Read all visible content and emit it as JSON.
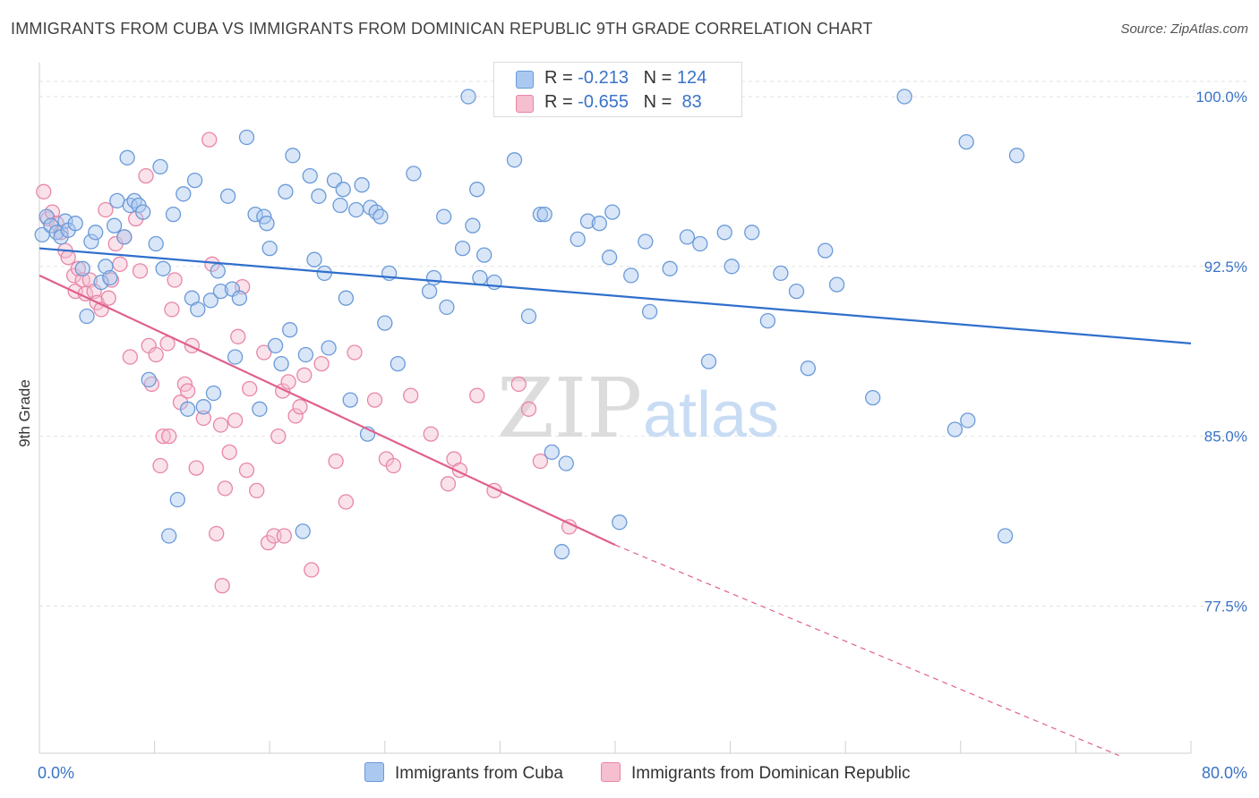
{
  "header": {
    "title": "IMMIGRANTS FROM CUBA VS IMMIGRANTS FROM DOMINICAN REPUBLIC 9TH GRADE CORRELATION CHART",
    "source": "Source: ZipAtlas.com"
  },
  "legend": {
    "rows": [
      {
        "r_label": "R =",
        "r_value": "-0.213",
        "n_label": "N =",
        "n_value": "124"
      },
      {
        "r_label": "R =",
        "r_value": "-0.655",
        "n_label": "N =",
        "n_value": "83"
      }
    ],
    "bottom": [
      {
        "label": "Immigrants from Cuba"
      },
      {
        "label": "Immigrants from Dominican Republic"
      }
    ]
  },
  "watermark": {
    "zip": "ZIP",
    "atlas": "atlas"
  },
  "colors": {
    "cuba_fill": "#aac8f0",
    "cuba_stroke": "#6a9ad8",
    "cuba_line": "#2f6fcc",
    "dr_fill": "#f5bfd0",
    "dr_stroke": "#e886a6",
    "dr_line": "#e0608e",
    "axis_text": "#3a73c8",
    "grid": "#e2e2e2"
  },
  "chart_data": {
    "type": "scatter",
    "title": "IMMIGRANTS FROM CUBA VS IMMIGRANTS FROM DOMINICAN REPUBLIC 9TH GRADE CORRELATION CHART",
    "xlabel": "",
    "ylabel": "9th Grade",
    "xlim": [
      0,
      80
    ],
    "ylim": [
      71,
      101.5
    ],
    "x_tick_labels": [
      {
        "value": 0,
        "label": "0.0%"
      },
      {
        "value": 80,
        "label": "80.0%"
      }
    ],
    "y_tick_labels": [
      {
        "value": 100,
        "label": "100.0%"
      },
      {
        "value": 92.5,
        "label": "92.5%"
      },
      {
        "value": 85,
        "label": "85.0%"
      },
      {
        "value": 77.5,
        "label": "77.5%"
      }
    ],
    "x_minor_ticks": [
      8,
      16,
      24,
      32,
      40,
      48,
      56,
      64,
      72,
      80
    ],
    "series": [
      {
        "name": "Immigrants from Cuba",
        "color": "#6a9ad8",
        "trend": {
          "x1": 0,
          "y1": 93.3,
          "x2": 80,
          "y2": 89.1
        },
        "points": [
          [
            0.2,
            93.9
          ],
          [
            0.5,
            94.7
          ],
          [
            0.8,
            94.3
          ],
          [
            1.2,
            94.0
          ],
          [
            1.5,
            93.8
          ],
          [
            1.8,
            94.5
          ],
          [
            2.0,
            94.1
          ],
          [
            2.5,
            94.4
          ],
          [
            3.0,
            92.4
          ],
          [
            3.3,
            90.3
          ],
          [
            3.6,
            93.6
          ],
          [
            3.9,
            94.0
          ],
          [
            4.3,
            91.8
          ],
          [
            4.6,
            92.5
          ],
          [
            4.9,
            92.0
          ],
          [
            5.2,
            94.3
          ],
          [
            5.4,
            95.4
          ],
          [
            5.9,
            93.8
          ],
          [
            6.1,
            97.3
          ],
          [
            6.3,
            95.2
          ],
          [
            6.6,
            95.4
          ],
          [
            6.9,
            95.2
          ],
          [
            7.2,
            94.9
          ],
          [
            7.6,
            87.5
          ],
          [
            8.1,
            93.5
          ],
          [
            8.4,
            96.9
          ],
          [
            8.6,
            92.4
          ],
          [
            9.0,
            80.6
          ],
          [
            9.3,
            94.8
          ],
          [
            9.6,
            82.2
          ],
          [
            10.0,
            95.7
          ],
          [
            10.3,
            86.2
          ],
          [
            10.6,
            91.1
          ],
          [
            10.8,
            96.3
          ],
          [
            11.0,
            90.6
          ],
          [
            11.4,
            86.3
          ],
          [
            11.9,
            91.0
          ],
          [
            12.1,
            86.9
          ],
          [
            12.4,
            92.3
          ],
          [
            12.6,
            91.4
          ],
          [
            13.1,
            95.6
          ],
          [
            13.4,
            91.5
          ],
          [
            13.6,
            88.5
          ],
          [
            13.9,
            91.1
          ],
          [
            14.4,
            98.2
          ],
          [
            15.0,
            94.8
          ],
          [
            15.3,
            86.2
          ],
          [
            15.6,
            94.7
          ],
          [
            15.8,
            94.4
          ],
          [
            16.0,
            93.3
          ],
          [
            16.4,
            89.0
          ],
          [
            16.8,
            88.2
          ],
          [
            17.1,
            95.8
          ],
          [
            17.4,
            89.7
          ],
          [
            17.6,
            97.4
          ],
          [
            18.3,
            80.8
          ],
          [
            18.5,
            88.6
          ],
          [
            18.8,
            96.5
          ],
          [
            19.1,
            92.8
          ],
          [
            19.4,
            95.6
          ],
          [
            19.8,
            92.2
          ],
          [
            20.1,
            88.9
          ],
          [
            20.5,
            96.3
          ],
          [
            20.9,
            95.2
          ],
          [
            21.1,
            95.9
          ],
          [
            21.3,
            91.1
          ],
          [
            21.6,
            86.6
          ],
          [
            22.0,
            95.0
          ],
          [
            22.4,
            96.1
          ],
          [
            22.8,
            85.1
          ],
          [
            23.0,
            95.1
          ],
          [
            23.4,
            94.9
          ],
          [
            23.7,
            94.7
          ],
          [
            24.0,
            90.0
          ],
          [
            24.3,
            92.2
          ],
          [
            24.9,
            88.2
          ],
          [
            26.0,
            96.6
          ],
          [
            27.1,
            91.4
          ],
          [
            27.4,
            92.0
          ],
          [
            28.1,
            94.7
          ],
          [
            28.3,
            90.7
          ],
          [
            29.4,
            93.3
          ],
          [
            29.8,
            100.0
          ],
          [
            30.1,
            94.3
          ],
          [
            30.4,
            95.9
          ],
          [
            30.6,
            92.0
          ],
          [
            30.9,
            93.0
          ],
          [
            31.6,
            91.8
          ],
          [
            33.0,
            97.2
          ],
          [
            34.0,
            90.3
          ],
          [
            34.8,
            94.8
          ],
          [
            35.1,
            94.8
          ],
          [
            35.6,
            84.3
          ],
          [
            36.3,
            79.9
          ],
          [
            36.6,
            83.8
          ],
          [
            37.4,
            93.7
          ],
          [
            38.1,
            94.5
          ],
          [
            38.9,
            94.4
          ],
          [
            39.6,
            92.9
          ],
          [
            39.8,
            94.9
          ],
          [
            40.3,
            81.2
          ],
          [
            41.1,
            92.1
          ],
          [
            42.1,
            93.6
          ],
          [
            42.4,
            90.5
          ],
          [
            43.8,
            92.4
          ],
          [
            45.0,
            93.8
          ],
          [
            45.9,
            93.5
          ],
          [
            46.5,
            88.3
          ],
          [
            47.6,
            94.0
          ],
          [
            48.1,
            92.5
          ],
          [
            49.5,
            94.0
          ],
          [
            50.6,
            90.1
          ],
          [
            51.5,
            92.2
          ],
          [
            52.6,
            91.4
          ],
          [
            53.4,
            88.0
          ],
          [
            54.6,
            93.2
          ],
          [
            55.4,
            91.7
          ],
          [
            57.9,
            86.7
          ],
          [
            60.1,
            100.0
          ],
          [
            63.6,
            85.3
          ],
          [
            64.5,
            85.7
          ],
          [
            67.1,
            80.6
          ],
          [
            64.4,
            98.0
          ],
          [
            67.9,
            97.4
          ]
        ]
      },
      {
        "name": "Immigrants from Dominican Republic",
        "color": "#e886a6",
        "trend": {
          "x1": 0,
          "y1": 92.1,
          "x2": 40,
          "y2": 80.2
        },
        "trend_extension": {
          "x1": 40,
          "y1": 80.2,
          "x2": 75,
          "y2": 70.9
        },
        "points": [
          [
            0.3,
            95.8
          ],
          [
            0.6,
            94.6
          ],
          [
            0.9,
            94.9
          ],
          [
            1.2,
            94.4
          ],
          [
            1.5,
            94.0
          ],
          [
            1.8,
            93.2
          ],
          [
            2.0,
            92.9
          ],
          [
            2.4,
            92.1
          ],
          [
            2.5,
            91.4
          ],
          [
            2.7,
            92.4
          ],
          [
            3.0,
            91.9
          ],
          [
            3.2,
            91.3
          ],
          [
            3.5,
            91.9
          ],
          [
            3.8,
            91.4
          ],
          [
            4.0,
            90.9
          ],
          [
            4.3,
            90.6
          ],
          [
            4.6,
            95.0
          ],
          [
            4.8,
            91.1
          ],
          [
            5.0,
            91.9
          ],
          [
            5.3,
            93.5
          ],
          [
            5.6,
            92.6
          ],
          [
            5.9,
            93.8
          ],
          [
            6.3,
            88.5
          ],
          [
            6.7,
            94.6
          ],
          [
            7.0,
            92.3
          ],
          [
            7.4,
            96.5
          ],
          [
            7.6,
            89.0
          ],
          [
            7.8,
            87.3
          ],
          [
            8.1,
            88.6
          ],
          [
            8.4,
            83.7
          ],
          [
            8.6,
            85.0
          ],
          [
            8.9,
            89.1
          ],
          [
            9.2,
            90.6
          ],
          [
            9.4,
            91.9
          ],
          [
            9.8,
            86.5
          ],
          [
            10.1,
            87.3
          ],
          [
            10.3,
            87.0
          ],
          [
            10.6,
            89.0
          ],
          [
            10.9,
            83.6
          ],
          [
            11.4,
            85.8
          ],
          [
            11.8,
            98.1
          ],
          [
            12.0,
            92.6
          ],
          [
            12.3,
            80.7
          ],
          [
            12.6,
            85.5
          ],
          [
            12.9,
            82.7
          ],
          [
            13.2,
            84.3
          ],
          [
            13.6,
            85.7
          ],
          [
            13.8,
            89.4
          ],
          [
            14.1,
            91.6
          ],
          [
            14.4,
            83.5
          ],
          [
            14.6,
            87.1
          ],
          [
            15.1,
            82.6
          ],
          [
            15.6,
            88.7
          ],
          [
            15.9,
            80.3
          ],
          [
            16.3,
            80.6
          ],
          [
            16.6,
            85.0
          ],
          [
            16.9,
            87.0
          ],
          [
            17.3,
            87.4
          ],
          [
            17.8,
            85.9
          ],
          [
            18.1,
            86.3
          ],
          [
            18.4,
            87.7
          ],
          [
            18.9,
            79.1
          ],
          [
            19.6,
            88.2
          ],
          [
            20.6,
            83.9
          ],
          [
            21.3,
            82.1
          ],
          [
            21.9,
            88.7
          ],
          [
            23.3,
            86.6
          ],
          [
            24.1,
            84.0
          ],
          [
            24.6,
            83.7
          ],
          [
            25.8,
            86.8
          ],
          [
            27.2,
            85.1
          ],
          [
            28.4,
            82.9
          ],
          [
            28.8,
            84.0
          ],
          [
            29.2,
            83.5
          ],
          [
            30.4,
            86.8
          ],
          [
            31.6,
            82.6
          ],
          [
            33.3,
            87.3
          ],
          [
            34.0,
            86.2
          ],
          [
            34.8,
            83.9
          ],
          [
            36.8,
            81.0
          ],
          [
            12.7,
            78.4
          ],
          [
            17.0,
            80.6
          ],
          [
            9.0,
            85.0
          ]
        ]
      }
    ]
  }
}
